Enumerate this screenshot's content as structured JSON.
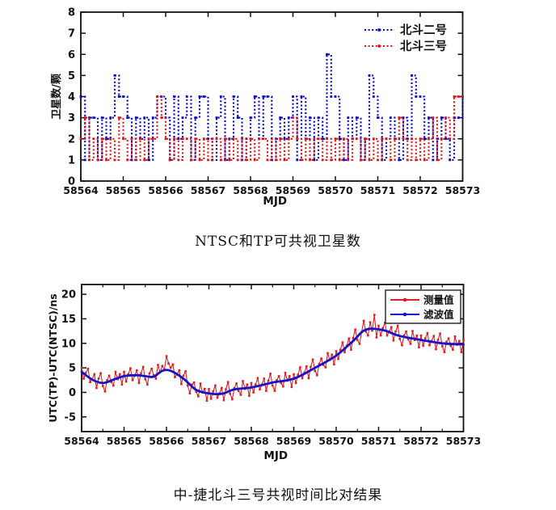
{
  "page": {
    "background": "#ffffff"
  },
  "captions": {
    "chart1": "NTSC和TP可共视卫星数",
    "chart2": "中-捷北斗三号共视时间比对结果"
  },
  "chart_data": [
    {
      "type": "step-line",
      "caption": "NTSC和TP可共视卫星数",
      "xlabel": "MJD",
      "ylabel": "卫星数/颗",
      "xlim": [
        58564,
        58573
      ],
      "ylim": [
        0,
        8
      ],
      "x_ticks": [
        58564,
        58565,
        58566,
        58567,
        58568,
        58569,
        58570,
        58571,
        58572,
        58573
      ],
      "y_ticks": [
        0,
        1,
        2,
        3,
        4,
        5,
        6,
        7,
        8
      ],
      "grid": false,
      "legend_position": "top-right-inside",
      "legend_box": false,
      "x0": 58564,
      "dx": 0.1,
      "series": [
        {
          "name": "北斗二号",
          "color": "#0000cc",
          "style": "dashed-dot",
          "values": [
            4,
            1,
            3,
            3,
            1,
            3,
            2,
            3,
            5,
            4,
            4,
            3,
            1,
            3,
            2,
            3,
            1,
            3,
            4,
            4,
            3,
            1,
            4,
            2,
            3,
            4,
            1,
            3,
            4,
            4,
            2,
            1,
            3,
            4,
            1,
            2,
            4,
            3,
            1,
            2,
            3,
            4,
            2,
            4,
            4,
            1,
            2,
            3,
            2,
            3,
            4,
            1,
            4,
            2,
            3,
            1,
            3,
            2,
            6,
            4,
            4,
            2,
            1,
            3,
            2,
            3,
            1,
            2,
            5,
            4,
            3,
            1,
            2,
            3,
            2,
            1,
            3,
            2,
            5,
            4,
            4,
            2,
            3,
            1,
            2,
            3,
            2,
            1,
            3,
            3,
            4
          ]
        },
        {
          "name": "北斗三号",
          "color": "#dd1111",
          "style": "dashed-dot",
          "values": [
            2,
            3,
            1,
            2,
            1,
            2,
            1,
            2,
            1,
            3,
            2,
            1,
            2,
            1,
            2,
            1,
            2,
            2,
            4,
            3,
            2,
            1,
            2,
            1,
            2,
            2,
            1,
            2,
            1,
            2,
            1,
            2,
            2,
            1,
            2,
            1,
            2,
            1,
            2,
            1,
            2,
            1,
            2,
            2,
            1,
            2,
            1,
            2,
            1,
            2,
            3,
            2,
            1,
            2,
            1,
            2,
            2,
            1,
            2,
            1,
            2,
            1,
            2,
            1,
            2,
            2,
            1,
            2,
            1,
            2,
            1,
            2,
            2,
            1,
            2,
            3,
            2,
            1,
            2,
            1,
            2,
            1,
            2,
            3,
            1,
            2,
            3,
            2,
            4,
            4,
            4
          ]
        }
      ]
    },
    {
      "type": "line",
      "caption": "中-捷北斗三号共视时间比对结果",
      "xlabel": "MJD",
      "ylabel": "UTC(TP)-UTC(NTSC)/ns",
      "xlim": [
        58564,
        58573
      ],
      "axis_ylim": [
        -8,
        22
      ],
      "x_ticks": [
        58564,
        58565,
        58566,
        58567,
        58568,
        58569,
        58570,
        58571,
        58572,
        58573
      ],
      "y_ticks": [
        -5,
        0,
        5,
        10,
        15,
        20
      ],
      "minor_x_step": 0.5,
      "grid": false,
      "legend_position": "top-right-inside",
      "legend_box": true,
      "series": [
        {
          "name": "测量值",
          "color": "#e02020",
          "style": "line-marker",
          "x0": 58564,
          "dx": 0.05,
          "values": [
            5.1,
            2.8,
            4.0,
            4.8,
            2.1,
            2.7,
            3.7,
            0.9,
            2.8,
            3.9,
            1.3,
            0.2,
            2.5,
            3.4,
            2.1,
            1.4,
            4.2,
            2.7,
            3.7,
            1.6,
            4.2,
            2.2,
            3.7,
            4.9,
            2.5,
            3.4,
            4.5,
            1.9,
            3.9,
            5.2,
            2.7,
            1.6,
            3.9,
            4.8,
            3.5,
            2.8,
            5.6,
            4.1,
            5.4,
            4.6,
            7.4,
            5.9,
            5.0,
            5.7,
            3.1,
            3.7,
            4.5,
            1.7,
            3.4,
            4.3,
            1.4,
            -0.2,
            1.6,
            2.0,
            0.1,
            -0.8,
            1.8,
            0.0,
            0.7,
            -1.7,
            0.7,
            -1.3,
            0.2,
            1.4,
            -1.1,
            -0.2,
            0.9,
            -1.6,
            0.6,
            2.1,
            -0.3,
            -1.4,
            0.9,
            1.8,
            0.3,
            -0.5,
            2.3,
            0.7,
            1.6,
            -0.7,
            1.9,
            0.0,
            1.6,
            2.9,
            0.6,
            1.6,
            2.8,
            0.3,
            2.4,
            3.8,
            1.4,
            0.3,
            2.5,
            3.3,
            1.9,
            1.2,
            4.0,
            2.4,
            3.3,
            1.1,
            3.7,
            1.9,
            3.6,
            5.1,
            2.9,
            4.0,
            5.3,
            2.9,
            5.2,
            6.7,
            4.4,
            3.5,
            5.8,
            6.9,
            5.6,
            5.1,
            8.0,
            6.6,
            7.7,
            5.7,
            8.4,
            6.8,
            8.7,
            10.2,
            8.2,
            9.5,
            11.0,
            8.7,
            11.1,
            12.8,
            10.7,
            9.9,
            12.3,
            14.6,
            12.4,
            11.6,
            14.3,
            12.6,
            15.8,
            11.2,
            13.6,
            11.6,
            13.1,
            14.2,
            11.6,
            12.4,
            13.3,
            10.6,
            12.4,
            13.6,
            10.9,
            9.6,
            11.6,
            12.4,
            10.8,
            9.9,
            12.5,
            10.7,
            11.6,
            9.2,
            11.6,
            9.5,
            11.0,
            12.1,
            9.6,
            10.5,
            11.5,
            8.8,
            10.7,
            12.0,
            9.4,
            8.2,
            10.3,
            11.0,
            9.5,
            8.7,
            11.4,
            9.7,
            10.5,
            8.2,
            10.7
          ]
        },
        {
          "name": "滤波值",
          "color": "#1212cc",
          "style": "thick-smooth",
          "points": [
            [
              58564.0,
              4.2
            ],
            [
              58564.25,
              2.6
            ],
            [
              58564.5,
              1.9
            ],
            [
              58564.75,
              2.6
            ],
            [
              58565.0,
              3.3
            ],
            [
              58565.3,
              3.5
            ],
            [
              58565.5,
              3.3
            ],
            [
              58565.7,
              3.2
            ],
            [
              58565.9,
              4.4
            ],
            [
              58566.1,
              4.4
            ],
            [
              58566.4,
              2.8
            ],
            [
              58566.7,
              0.5
            ],
            [
              58567.0,
              -0.2
            ],
            [
              58567.3,
              -0.3
            ],
            [
              58567.6,
              0.6
            ],
            [
              58568.0,
              1.0
            ],
            [
              58568.5,
              2.0
            ],
            [
              58569.0,
              2.8
            ],
            [
              58569.5,
              5.0
            ],
            [
              58570.0,
              7.5
            ],
            [
              58570.4,
              10.5
            ],
            [
              58570.7,
              12.8
            ],
            [
              58571.1,
              12.7
            ],
            [
              58571.5,
              11.5
            ],
            [
              58572.0,
              10.7
            ],
            [
              58572.5,
              10.0
            ],
            [
              58573.0,
              9.8
            ]
          ]
        }
      ]
    }
  ]
}
